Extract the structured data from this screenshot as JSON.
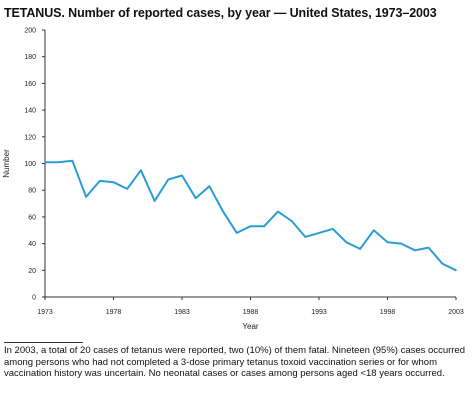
{
  "title": "TETANUS. Number of reported cases, by year — United States, 1973–2003",
  "footnote": "In 2003, a total of 20 cases of tetanus were reported, two (10%) of them fatal. Nineteen (95%) cases occurred among persons who had not completed a 3-dose primary tetanus toxoid vaccination series or for whom vaccination history was uncertain. No neonatal cases or cases among persons aged <18 years occurred.",
  "chart_data": {
    "type": "line",
    "title": "TETANUS. Number of reported cases, by year — United States, 1973–2003",
    "xlabel": "Year",
    "ylabel": "Number",
    "xlim": [
      1973,
      2003
    ],
    "ylim": [
      0,
      200
    ],
    "x_ticks": [
      1973,
      1978,
      1983,
      1988,
      1993,
      1998,
      2003
    ],
    "y_ticks": [
      0,
      20,
      40,
      60,
      80,
      100,
      120,
      140,
      160,
      180,
      200
    ],
    "grid": false,
    "line_color": "#2a9dd4",
    "series": [
      {
        "x": [
          1973,
          1974,
          1975,
          1976,
          1977,
          1978,
          1979,
          1980,
          1981,
          1982,
          1983,
          1984,
          1985,
          1986,
          1987,
          1988,
          1989,
          1990,
          1991,
          1992,
          1993,
          1994,
          1995,
          1996,
          1997,
          1998,
          1999,
          2000,
          2001,
          2002,
          2003
        ],
        "values": [
          101,
          101,
          102,
          75,
          87,
          86,
          81,
          95,
          72,
          88,
          91,
          74,
          83,
          64,
          48,
          53,
          53,
          64,
          57,
          45,
          48,
          51,
          41,
          36,
          50,
          41,
          40,
          35,
          37,
          25,
          20
        ]
      }
    ]
  }
}
